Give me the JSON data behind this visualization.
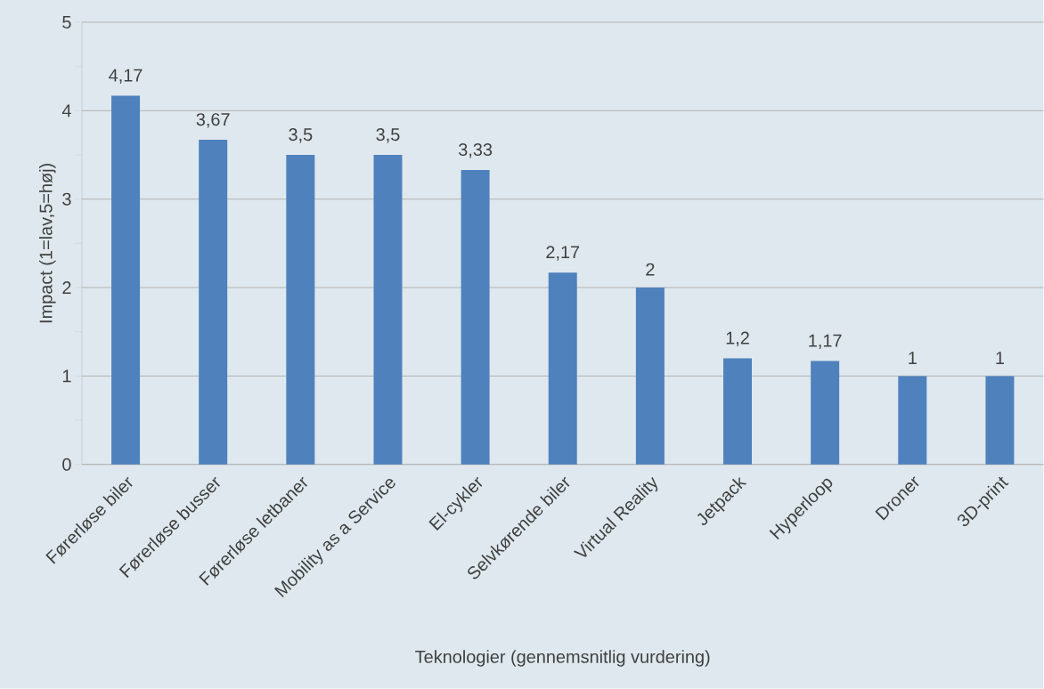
{
  "chart_data": {
    "type": "bar",
    "xlabel": "Teknologier (gennemsnitlig vurdering)",
    "ylabel": "Impact (1=lav,5=høj)",
    "categories": [
      "Førerløse biler",
      "Førerløse busser",
      "Førerløse letbaner",
      "Mobility as a Service",
      "El-cykler",
      "Selvkørende biler",
      "Virtual Reality",
      "Jetpack",
      "Hyperloop",
      "Droner",
      "3D-print"
    ],
    "values": [
      4.17,
      3.67,
      3.5,
      3.5,
      3.33,
      2.17,
      2,
      1.2,
      1.17,
      1,
      1
    ],
    "value_labels": [
      "4,17",
      "3,67",
      "3,5",
      "3,5",
      "3,33",
      "2,17",
      "2",
      "1,2",
      "1,17",
      "1",
      "1"
    ],
    "color": "#4f81bd",
    "ylim": [
      0,
      5
    ],
    "yticks": [
      0,
      1,
      2,
      3,
      4,
      5
    ],
    "grid": "y"
  }
}
